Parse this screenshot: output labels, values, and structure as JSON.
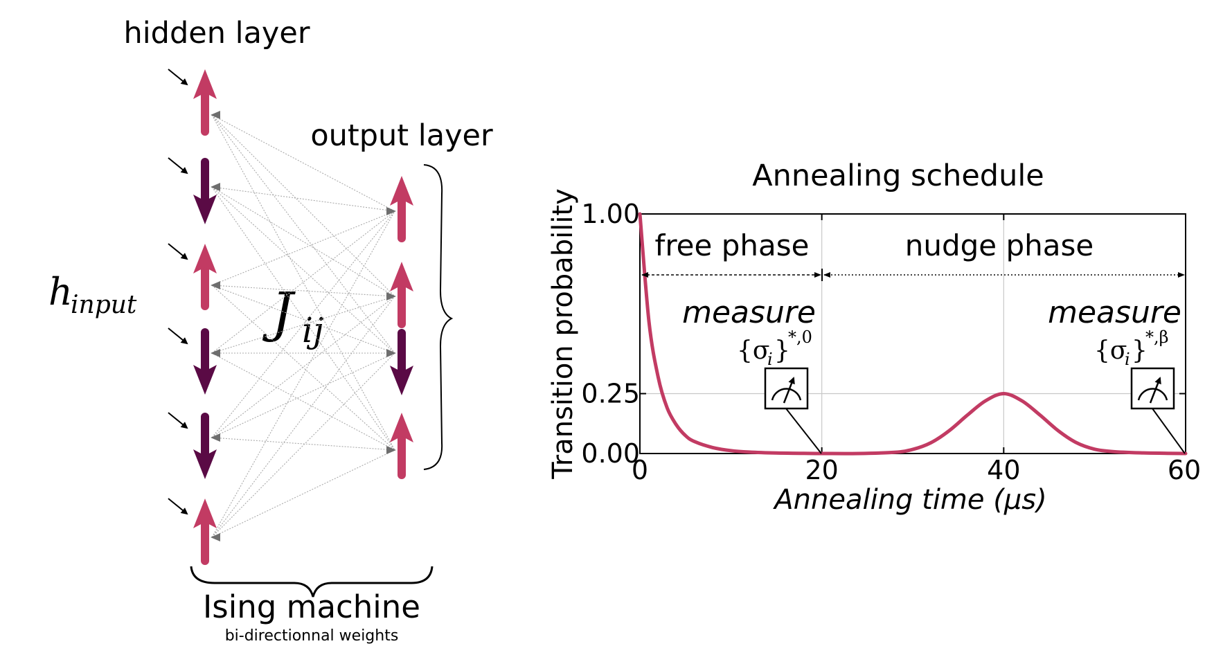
{
  "network": {
    "hidden_label": "hidden layer",
    "output_label": "output layer",
    "input_field_base": "h",
    "input_field_sub": "input",
    "coupling_base": "J",
    "coupling_sub": "ij",
    "machine_label": "Ising machine",
    "machine_sublabel": "bi-directionnal weights",
    "hidden_spins": [
      "up",
      "down",
      "up",
      "down",
      "down",
      "up"
    ],
    "output_spins": [
      "up",
      "up",
      "down",
      "up"
    ],
    "colors": {
      "up": "#c23b63",
      "down": "#5a0a45",
      "edge": "#a9a9a9",
      "edge_head": "#6e6e6e"
    }
  },
  "schedule": {
    "title": "Annealing schedule",
    "free_phase_label": "free phase",
    "nudge_phase_label": "nudge phase",
    "measure_label": "measure",
    "measure_free_sup": "*,0",
    "measure_nudge_sup": "*,β",
    "sigma_base": "{σ",
    "sigma_sub": "i",
    "sigma_close": "}"
  },
  "chart_data": {
    "type": "line",
    "xlabel": "Annealing time (μs)",
    "ylabel": "Transition probability",
    "xlim": [
      0,
      60
    ],
    "ylim": [
      0,
      1
    ],
    "xticks": [
      0,
      20,
      40,
      60
    ],
    "xtick_labels": [
      "0",
      "20",
      "40",
      "60"
    ],
    "yticks": [
      0,
      0.25,
      1
    ],
    "ytick_labels": [
      "0.00",
      "0.25",
      "1.00"
    ],
    "grid": true,
    "line_color": "#c23b63",
    "x": [
      0,
      1,
      2,
      3,
      4,
      5,
      6,
      8,
      10,
      12,
      15,
      18,
      20,
      24,
      28,
      30,
      32,
      34,
      36,
      38,
      40,
      42,
      44,
      46,
      48,
      50,
      52,
      55,
      58,
      60
    ],
    "y": [
      1.0,
      0.55,
      0.32,
      0.19,
      0.12,
      0.075,
      0.05,
      0.025,
      0.012,
      0.006,
      0.002,
      0.0005,
      0.0,
      0.0,
      0.005,
      0.017,
      0.045,
      0.095,
      0.16,
      0.22,
      0.25,
      0.22,
      0.16,
      0.095,
      0.045,
      0.018,
      0.008,
      0.003,
      0.001,
      0.0
    ]
  }
}
